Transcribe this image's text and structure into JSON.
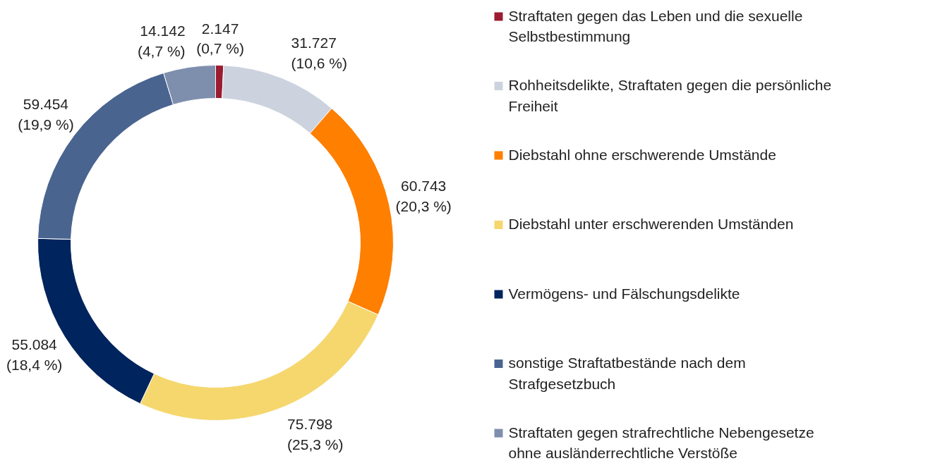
{
  "chart_data": {
    "type": "donut",
    "categories": [
      "Straftaten gegen das Leben und die sexuelle Selbstbestimmung",
      "Rohheitsdelikte, Straftaten gegen die persönliche Freiheit",
      "Diebstahl ohne erschwerende Umstände",
      "Diebstahl unter erschwerenden Umständen",
      "Vermögens- und Fälschungsdelikte",
      "sonstige Straftatbestände nach dem Strafgesetzbuch",
      "Straftaten gegen strafrechtliche Nebengesetze ohne ausländerrechtliche Verstöße"
    ],
    "values": [
      2147,
      31727,
      60743,
      75798,
      55084,
      59454,
      14142
    ],
    "value_labels": [
      "2.147\n(0,7 %)",
      "31.727\n(10,6 %)",
      "60.743\n(20,3 %)",
      "75.798\n(25,3 %)",
      "55.084\n(18,4 %)",
      "59.454\n(19,9 %)",
      "14.142\n(4,7 %)"
    ],
    "colors": [
      "#9b1b30",
      "#ccd3df",
      "#ff7f00",
      "#f5d76e",
      "#00245d",
      "#4a6490",
      "#7e8fae"
    ],
    "legend": "right"
  }
}
